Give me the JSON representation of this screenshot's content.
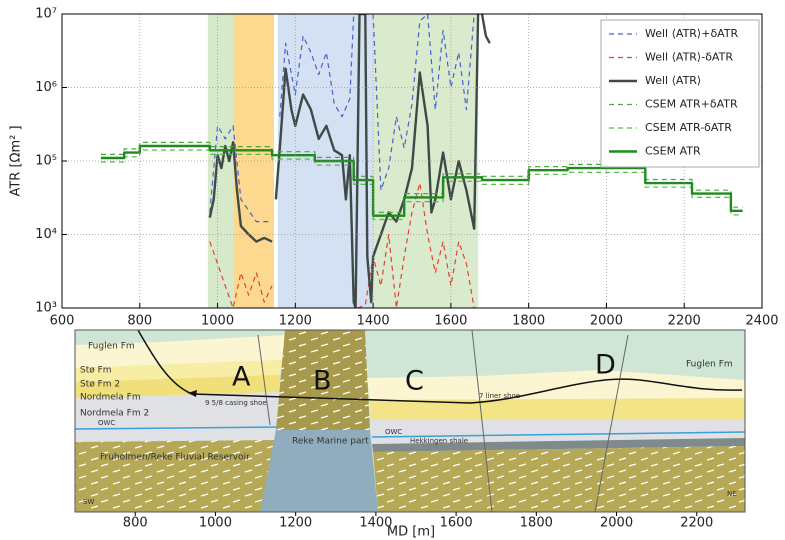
{
  "chart_data": {
    "type": "line",
    "yscale": "log",
    "grid": true,
    "legend": "upper right",
    "ylabel": "ATR [Ωm² ]",
    "xlim": [
      600,
      2400
    ],
    "xticks": [
      600,
      800,
      1000,
      1200,
      1400,
      1600,
      1800,
      2000,
      2200,
      2400
    ],
    "ylim": [
      1000,
      10000000
    ],
    "yticks": [
      {
        "value": 1000,
        "label": "10³"
      },
      {
        "value": 10000,
        "label": "10⁴"
      },
      {
        "value": 100000,
        "label": "10⁵"
      },
      {
        "value": 1000000,
        "label": "10⁶"
      },
      {
        "value": 10000000,
        "label": "10⁷"
      }
    ],
    "bands": [
      {
        "x0": 975,
        "x1": 1040,
        "color": "#cfe6c2"
      },
      {
        "x0": 1040,
        "x1": 1145,
        "color": "#fbd27a"
      },
      {
        "x0": 1155,
        "x1": 1400,
        "color": "#cddcf0"
      },
      {
        "x0": 1400,
        "x1": 1670,
        "color": "#d3e6c4"
      }
    ],
    "series": [
      {
        "name": "Well ⟨ATR⟩+δATR",
        "color": "#4a5fd0",
        "dash": true,
        "x": [
          980,
          1000,
          1020,
          1040,
          1060,
          1100,
          1140,
          1145,
          1160,
          1175,
          1200,
          1220,
          1240,
          1260,
          1280,
          1300,
          1320,
          1340,
          1350,
          1400,
          1420,
          1440,
          1460,
          1480,
          1500,
          1520,
          1540,
          1560,
          1580,
          1600,
          1620,
          1640,
          1660
        ],
        "values": [
          20000,
          300000,
          200000,
          300000,
          30000,
          15000,
          15000,
          null,
          400000,
          4000000,
          800000,
          5000000,
          3000000,
          1500000,
          3000000,
          600000,
          400000,
          700000,
          10000000,
          10000000,
          40000,
          80000,
          400000,
          150000,
          600000,
          8000000,
          10000000,
          500000,
          6000000,
          1000000,
          3000000,
          500000,
          10000000
        ]
      },
      {
        "name": "Well ⟨ATR⟩-δATR",
        "color": "#e0442e",
        "dash": true,
        "x": [
          980,
          1000,
          1020,
          1040,
          1060,
          1080,
          1100,
          1120,
          1140,
          1145,
          1360,
          1380,
          1400,
          1420,
          1440,
          1460,
          1480,
          1500,
          1520,
          1540,
          1560,
          1580,
          1600,
          1620,
          1640,
          1660
        ],
        "values": [
          8000,
          4000,
          2000,
          1000,
          3000,
          1500,
          3000,
          1200,
          2000,
          null,
          1000,
          1100,
          5000,
          2000,
          10000,
          1000,
          5000,
          20000,
          50000,
          10000,
          3000,
          8000,
          2000,
          8000,
          4000,
          1000
        ]
      },
      {
        "name": "Well ⟨ATR⟩",
        "color": "#3f4a48",
        "dash": false,
        "x": [
          980,
          990,
          1000,
          1010,
          1020,
          1030,
          1040,
          1050,
          1060,
          1080,
          1100,
          1120,
          1140,
          1145,
          1150,
          1160,
          1175,
          1190,
          1200,
          1220,
          1240,
          1260,
          1280,
          1300,
          1320,
          1330,
          1340,
          1350,
          1355,
          1365,
          1380,
          1385,
          1395,
          1400,
          1420,
          1440,
          1460,
          1480,
          1500,
          1520,
          1540,
          1550,
          1560,
          1580,
          1600,
          1620,
          1640,
          1660,
          1670,
          1675,
          1680,
          1690,
          1700
        ],
        "values": [
          17000,
          30000,
          120000,
          80000,
          160000,
          100000,
          180000,
          40000,
          13000,
          10000,
          8000,
          9000,
          8000,
          null,
          30000,
          150000,
          1800000,
          500000,
          300000,
          800000,
          500000,
          200000,
          300000,
          140000,
          120000,
          30000,
          120000,
          1200,
          1000,
          10000000,
          10000000,
          5000,
          1200,
          5000,
          10000,
          20000,
          15000,
          30000,
          80000,
          1600000,
          300000,
          20000,
          30000,
          130000,
          30000,
          100000,
          40000,
          12000,
          10000000,
          null,
          10000000,
          5000000,
          4000000
        ]
      },
      {
        "name": "CSEM ATR+δATR",
        "color": "#4aa83c",
        "dash": true,
        "x": [
          700,
          760,
          760,
          800,
          800,
          900,
          900,
          980,
          980,
          1140,
          1140,
          1250,
          1250,
          1350,
          1350,
          1400,
          1400,
          1480,
          1480,
          1580,
          1580,
          1680,
          1680,
          1800,
          1800,
          1900,
          1900,
          2100,
          2100,
          2220,
          2220,
          2320,
          2320,
          2350
        ],
        "values": [
          123000,
          123000,
          146000,
          146000,
          179000,
          179000,
          179000,
          179000,
          157000,
          157000,
          134000,
          134000,
          112000,
          112000,
          62000,
          62000,
          20000,
          20000,
          36000,
          36000,
          67000,
          67000,
          62000,
          62000,
          84000,
          84000,
          90000,
          90000,
          56000,
          56000,
          40000,
          40000,
          23500,
          23500
        ]
      },
      {
        "name": "CSEM ATR-δATR",
        "color": "#5cb84c",
        "dash": true,
        "x": [
          700,
          760,
          760,
          800,
          800,
          900,
          900,
          980,
          980,
          1140,
          1140,
          1250,
          1250,
          1350,
          1350,
          1400,
          1400,
          1480,
          1480,
          1580,
          1580,
          1680,
          1680,
          1800,
          1800,
          1900,
          1900,
          2100,
          2100,
          2220,
          2220,
          2320,
          2320,
          2350
        ],
        "values": [
          97000,
          97000,
          114000,
          114000,
          141000,
          141000,
          141000,
          141000,
          123000,
          123000,
          106000,
          106000,
          88000,
          88000,
          48000,
          48000,
          16000,
          16000,
          28000,
          28000,
          53000,
          53000,
          48000,
          48000,
          66000,
          66000,
          70000,
          70000,
          44000,
          44000,
          32000,
          32000,
          18500,
          18500
        ]
      },
      {
        "name": "CSEM ATR",
        "color": "#1f8a1f",
        "dash": false,
        "x": [
          700,
          760,
          760,
          800,
          800,
          900,
          900,
          980,
          980,
          1140,
          1140,
          1250,
          1250,
          1350,
          1350,
          1400,
          1400,
          1480,
          1480,
          1580,
          1580,
          1680,
          1680,
          1800,
          1800,
          1900,
          1900,
          2100,
          2100,
          2220,
          2220,
          2320,
          2320,
          2350
        ],
        "values": [
          110000,
          110000,
          130000,
          130000,
          160000,
          160000,
          160000,
          160000,
          140000,
          140000,
          120000,
          120000,
          100000,
          100000,
          55000,
          55000,
          18000,
          18000,
          32000,
          32000,
          60000,
          60000,
          55000,
          55000,
          75000,
          75000,
          80000,
          80000,
          50000,
          50000,
          36000,
          36000,
          21000,
          21000
        ]
      }
    ]
  },
  "cross_section": {
    "labels": [
      "Fuglen Fm",
      "Stø Fm",
      "Stø Fm 2",
      "Nordmela Fm",
      "Nordmela Fm 2",
      "Fruholmen/Reke Fluvial Reservoir",
      "Reke Marine part",
      "Fuglen Fm",
      "OWC",
      "OWC",
      "SW",
      "NE",
      "9 5/8 casing shoe",
      "7 liner shoe",
      "Hekkingen shale"
    ],
    "zones": [
      "A",
      "B",
      "C",
      "D"
    ],
    "xlabel": "MD [m]",
    "xlim": [
      600,
      2400
    ],
    "xticks": [
      800,
      1000,
      1200,
      1400,
      1600,
      1800,
      2000,
      2200
    ]
  }
}
